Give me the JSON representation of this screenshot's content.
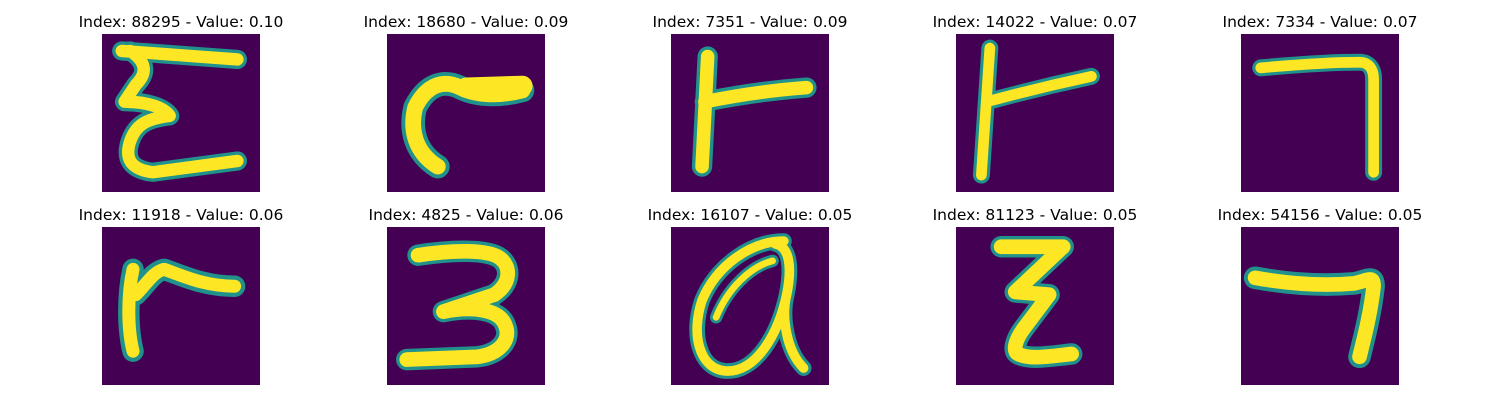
{
  "colors": {
    "background": "#440154",
    "stroke_core": "#fde725",
    "stroke_edge": "#21918c"
  },
  "panels": [
    {
      "title": "Index: 88295 - Value: 0.10"
    },
    {
      "title": "Index: 18680 - Value: 0.09"
    },
    {
      "title": "Index: 7351 - Value: 0.09"
    },
    {
      "title": "Index: 14022 - Value: 0.07"
    },
    {
      "title": "Index: 7334 - Value: 0.07"
    },
    {
      "title": "Index: 11918 - Value: 0.06"
    },
    {
      "title": "Index: 4825 - Value: 0.06"
    },
    {
      "title": "Index: 16107 - Value: 0.05"
    },
    {
      "title": "Index: 81123 - Value: 0.05"
    },
    {
      "title": "Index: 54156 - Value: 0.05"
    }
  ]
}
